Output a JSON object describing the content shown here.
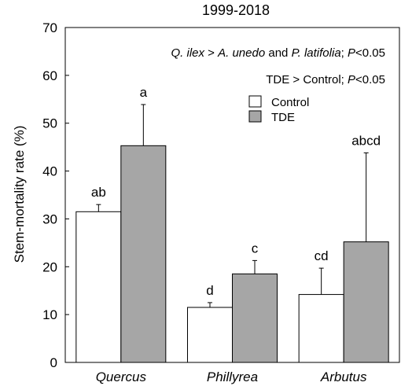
{
  "chart_data": {
    "type": "bar",
    "title": "1999-2018",
    "ylabel": "Stem-mortality rate (%)",
    "xlabel": "",
    "ylim": [
      0,
      70
    ],
    "yticks": [
      0,
      10,
      20,
      30,
      40,
      50,
      60,
      70
    ],
    "grid": false,
    "legend_position": "top-right",
    "categories": [
      "Quercus",
      "Phillyrea",
      "Arbutus"
    ],
    "series": [
      {
        "name": "Control",
        "color": "#ffffff",
        "values": [
          31.5,
          11.5,
          14.2
        ],
        "errors": [
          1.5,
          1.0,
          5.5
        ],
        "letters": [
          "ab",
          "d",
          "cd"
        ]
      },
      {
        "name": "TDE",
        "color": "#a6a6a6",
        "values": [
          45.3,
          18.5,
          25.2
        ],
        "errors": [
          8.6,
          2.8,
          18.6
        ],
        "letters": [
          "a",
          "c",
          "abcd"
        ]
      }
    ],
    "annotations": {
      "line1": {
        "sp1": "Q. ilex",
        "op1": " > ",
        "sp2": "A. unedo",
        "and": " and ",
        "sp3": "P. latifolia",
        "sep": "; ",
        "p": "P",
        "cond": "<0.05"
      },
      "line2": {
        "text": "TDE > Control; ",
        "p": "P",
        "cond": "<0.05"
      }
    }
  }
}
